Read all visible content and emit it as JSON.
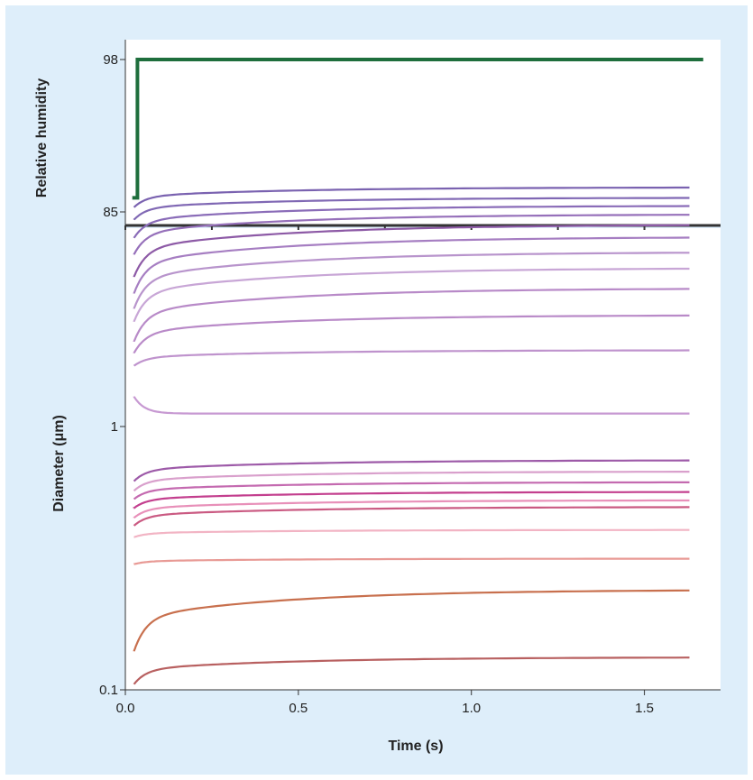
{
  "chart_data": [
    {
      "type": "line",
      "ylabel": "Relative humidity",
      "xlim": [
        0,
        1.72
      ],
      "ylim": [
        85,
        98
      ],
      "yticks": [
        {
          "value": 85,
          "label": "85"
        },
        {
          "value": 98,
          "label": "98"
        }
      ],
      "series": [
        {
          "color": "#1e6e3c",
          "points": [
            [
              0.02,
              86.2
            ],
            [
              0.035,
              86.2
            ],
            [
              0.035,
              98
            ],
            [
              1.67,
              98
            ]
          ]
        }
      ]
    },
    {
      "type": "line",
      "xlabel": "Time (s)",
      "ylabel": "Diameter (μm)",
      "yscale": "log",
      "xlim": [
        0,
        1.72
      ],
      "ylim": [
        0.1,
        10
      ],
      "xticks": [
        {
          "value": 0,
          "label": "0.0"
        },
        {
          "value": 0.5,
          "label": "0.5"
        },
        {
          "value": 1.0,
          "label": "1.0"
        },
        {
          "value": 1.5,
          "label": "1.5"
        }
      ],
      "yticks": [
        {
          "value": 0.1,
          "label": "0.1"
        },
        {
          "value": 1,
          "label": "1"
        }
      ],
      "series": [
        {
          "start": 6.8,
          "final": 8.1,
          "color": "#7a62b0"
        },
        {
          "start": 6.1,
          "final": 7.4,
          "color": "#8068b4"
        },
        {
          "start": 5.2,
          "final": 6.9,
          "color": "#8a6cb8"
        },
        {
          "start": 4.5,
          "final": 6.4,
          "color": "#9670ba"
        },
        {
          "start": 3.7,
          "final": 5.85,
          "color": "#8d5aa6"
        },
        {
          "start": 3.2,
          "final": 5.25,
          "color": "#a67ec2"
        },
        {
          "start": 2.8,
          "final": 4.6,
          "color": "#b894cc"
        },
        {
          "start": 2.5,
          "final": 4.0,
          "color": "#c8a6d6"
        },
        {
          "start": 2.1,
          "final": 3.35,
          "color": "#b88ac8"
        },
        {
          "start": 1.9,
          "final": 2.65,
          "color": "#b98ac8"
        },
        {
          "start": 1.7,
          "final": 1.95,
          "color": "#bf93cd"
        },
        {
          "start": 1.3,
          "final": 1.12,
          "color": "#c799d2"
        },
        {
          "start": 0.62,
          "final": 0.745,
          "color": "#9d5aa8"
        },
        {
          "start": 0.57,
          "final": 0.675,
          "color": "#d9a0cc"
        },
        {
          "start": 0.53,
          "final": 0.615,
          "color": "#c46ab0"
        },
        {
          "start": 0.49,
          "final": 0.565,
          "color": "#c33f8e"
        },
        {
          "start": 0.45,
          "final": 0.525,
          "color": "#e890b9"
        },
        {
          "start": 0.42,
          "final": 0.495,
          "color": "#ca5a82"
        },
        {
          "start": 0.38,
          "final": 0.405,
          "color": "#f2b4c4"
        },
        {
          "start": 0.3,
          "final": 0.315,
          "color": "#e89a95"
        },
        {
          "start": 0.14,
          "final": 0.24,
          "color": "#c8704e"
        },
        {
          "start": 0.105,
          "final": 0.133,
          "color": "#b86060"
        }
      ]
    }
  ]
}
